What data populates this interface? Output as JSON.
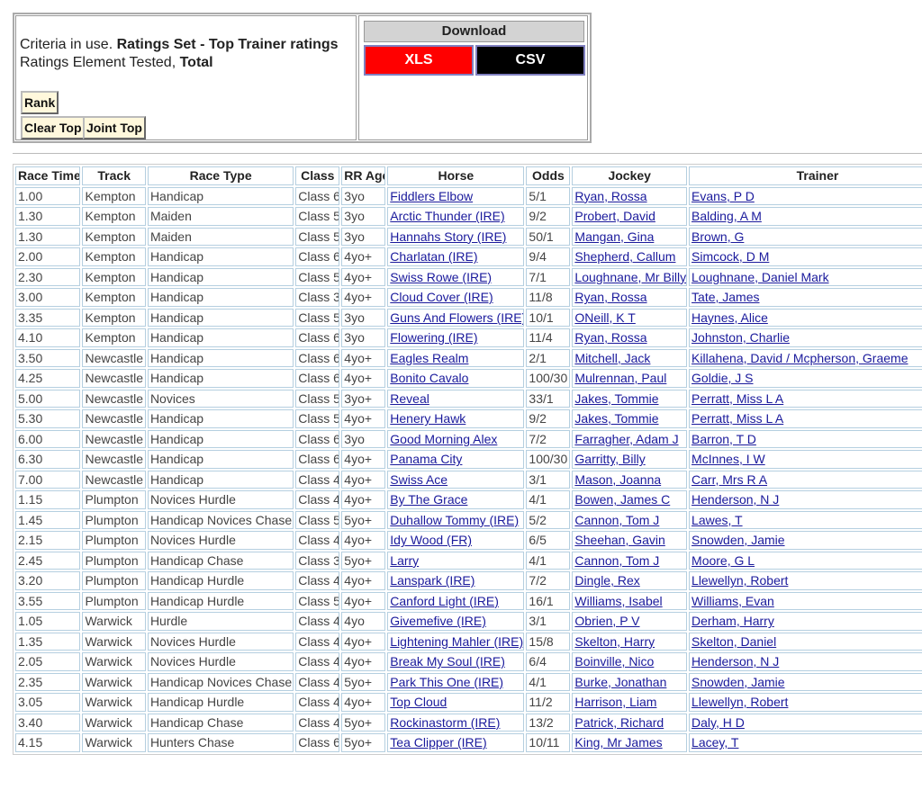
{
  "criteria": {
    "prefix": "Criteria in use.",
    "ratings_set": "Ratings Set - Top Trainer ratings",
    "element_prefix": "Ratings Element Tested,",
    "element": "Total"
  },
  "buttons": {
    "rank": "Rank",
    "clear_top": "Clear Top",
    "joint_top": "Joint Top"
  },
  "download": {
    "title": "Download",
    "xls": "XLS",
    "csv": "CSV"
  },
  "table": {
    "headers": [
      "Race Time",
      "Track",
      "Race Type",
      "Class",
      "RR Age",
      "Horse",
      "Odds",
      "Jockey",
      "Trainer"
    ],
    "rows": [
      [
        "1.00",
        "Kempton",
        "Handicap",
        "Class 6",
        "3yo",
        "Fiddlers Elbow",
        "5/1",
        "Ryan, Rossa",
        "Evans, P D"
      ],
      [
        "1.30",
        "Kempton",
        "Maiden",
        "Class 5",
        "3yo",
        "Arctic Thunder (IRE)",
        "9/2",
        "Probert, David",
        "Balding, A M"
      ],
      [
        "1.30",
        "Kempton",
        "Maiden",
        "Class 5",
        "3yo",
        "Hannahs Story (IRE)",
        "50/1",
        "Mangan, Gina",
        "Brown, G"
      ],
      [
        "2.00",
        "Kempton",
        "Handicap",
        "Class 6",
        "4yo+",
        "Charlatan (IRE)",
        "9/4",
        "Shepherd, Callum",
        "Simcock, D M"
      ],
      [
        "2.30",
        "Kempton",
        "Handicap",
        "Class 5",
        "4yo+",
        "Swiss Rowe (IRE)",
        "7/1",
        "Loughnane, Mr Billy",
        "Loughnane, Daniel Mark"
      ],
      [
        "3.00",
        "Kempton",
        "Handicap",
        "Class 3",
        "4yo+",
        "Cloud Cover (IRE)",
        "11/8",
        "Ryan, Rossa",
        "Tate, James"
      ],
      [
        "3.35",
        "Kempton",
        "Handicap",
        "Class 5",
        "3yo",
        "Guns And Flowers (IRE)",
        "10/1",
        "ONeill, K T",
        "Haynes, Alice"
      ],
      [
        "4.10",
        "Kempton",
        "Handicap",
        "Class 6",
        "3yo",
        "Flowering (IRE)",
        "11/4",
        "Ryan, Rossa",
        "Johnston, Charlie"
      ],
      [
        "3.50",
        "Newcastle",
        "Handicap",
        "Class 6",
        "4yo+",
        "Eagles Realm",
        "2/1",
        "Mitchell, Jack",
        "Killahena, David / Mcpherson, Graeme"
      ],
      [
        "4.25",
        "Newcastle",
        "Handicap",
        "Class 6",
        "4yo+",
        "Bonito Cavalo",
        "100/30",
        "Mulrennan, Paul",
        "Goldie, J S"
      ],
      [
        "5.00",
        "Newcastle",
        "Novices",
        "Class 5",
        "3yo+",
        "Reveal",
        "33/1",
        "Jakes, Tommie",
        "Perratt, Miss L A"
      ],
      [
        "5.30",
        "Newcastle",
        "Handicap",
        "Class 5",
        "4yo+",
        "Henery Hawk",
        "9/2",
        "Jakes, Tommie",
        "Perratt, Miss L A"
      ],
      [
        "6.00",
        "Newcastle",
        "Handicap",
        "Class 6",
        "3yo",
        "Good Morning Alex",
        "7/2",
        "Farragher, Adam J",
        "Barron, T D"
      ],
      [
        "6.30",
        "Newcastle",
        "Handicap",
        "Class 6",
        "4yo+",
        "Panama City",
        "100/30",
        "Garritty, Billy",
        "McInnes, I W"
      ],
      [
        "7.00",
        "Newcastle",
        "Handicap",
        "Class 4",
        "4yo+",
        "Swiss Ace",
        "3/1",
        "Mason, Joanna",
        "Carr, Mrs R A"
      ],
      [
        "1.15",
        "Plumpton",
        "Novices Hurdle",
        "Class 4",
        "4yo+",
        "By The Grace",
        "4/1",
        "Bowen, James C",
        "Henderson, N J"
      ],
      [
        "1.45",
        "Plumpton",
        "Handicap Novices Chase",
        "Class 5",
        "5yo+",
        "Duhallow Tommy (IRE)",
        "5/2",
        "Cannon, Tom J",
        "Lawes, T"
      ],
      [
        "2.15",
        "Plumpton",
        "Novices Hurdle",
        "Class 4",
        "4yo+",
        "Idy Wood (FR)",
        "6/5",
        "Sheehan, Gavin",
        "Snowden, Jamie"
      ],
      [
        "2.45",
        "Plumpton",
        "Handicap Chase",
        "Class 3",
        "5yo+",
        "Larry",
        "4/1",
        "Cannon, Tom J",
        "Moore, G L"
      ],
      [
        "3.20",
        "Plumpton",
        "Handicap Hurdle",
        "Class 4",
        "4yo+",
        "Lanspark (IRE)",
        "7/2",
        "Dingle, Rex",
        "Llewellyn, Robert"
      ],
      [
        "3.55",
        "Plumpton",
        "Handicap Hurdle",
        "Class 5",
        "4yo+",
        "Canford Light (IRE)",
        "16/1",
        "Williams, Isabel",
        "Williams, Evan"
      ],
      [
        "1.05",
        "Warwick",
        "Hurdle",
        "Class 4",
        "4yo",
        "Givemefive (IRE)",
        "3/1",
        "Obrien, P V",
        "Derham, Harry"
      ],
      [
        "1.35",
        "Warwick",
        "Novices Hurdle",
        "Class 4",
        "4yo+",
        "Lightening Mahler (IRE)",
        "15/8",
        "Skelton, Harry",
        "Skelton, Daniel"
      ],
      [
        "2.05",
        "Warwick",
        "Novices Hurdle",
        "Class 4",
        "4yo+",
        "Break My Soul (IRE)",
        "6/4",
        "Boinville, Nico",
        "Henderson, N J"
      ],
      [
        "2.35",
        "Warwick",
        "Handicap Novices Chase",
        "Class 4",
        "5yo+",
        "Park This One (IRE)",
        "4/1",
        "Burke, Jonathan",
        "Snowden, Jamie"
      ],
      [
        "3.05",
        "Warwick",
        "Handicap Hurdle",
        "Class 4",
        "4yo+",
        "Top Cloud",
        "11/2",
        "Harrison, Liam",
        "Llewellyn, Robert"
      ],
      [
        "3.40",
        "Warwick",
        "Handicap Chase",
        "Class 4",
        "5yo+",
        "Rockinastorm (IRE)",
        "13/2",
        "Patrick, Richard",
        "Daly, H D"
      ],
      [
        "4.15",
        "Warwick",
        "Hunters Chase",
        "Class 6",
        "5yo+",
        "Tea Clipper (IRE)",
        "10/11",
        "King, Mr James",
        "Lacey, T"
      ]
    ]
  }
}
